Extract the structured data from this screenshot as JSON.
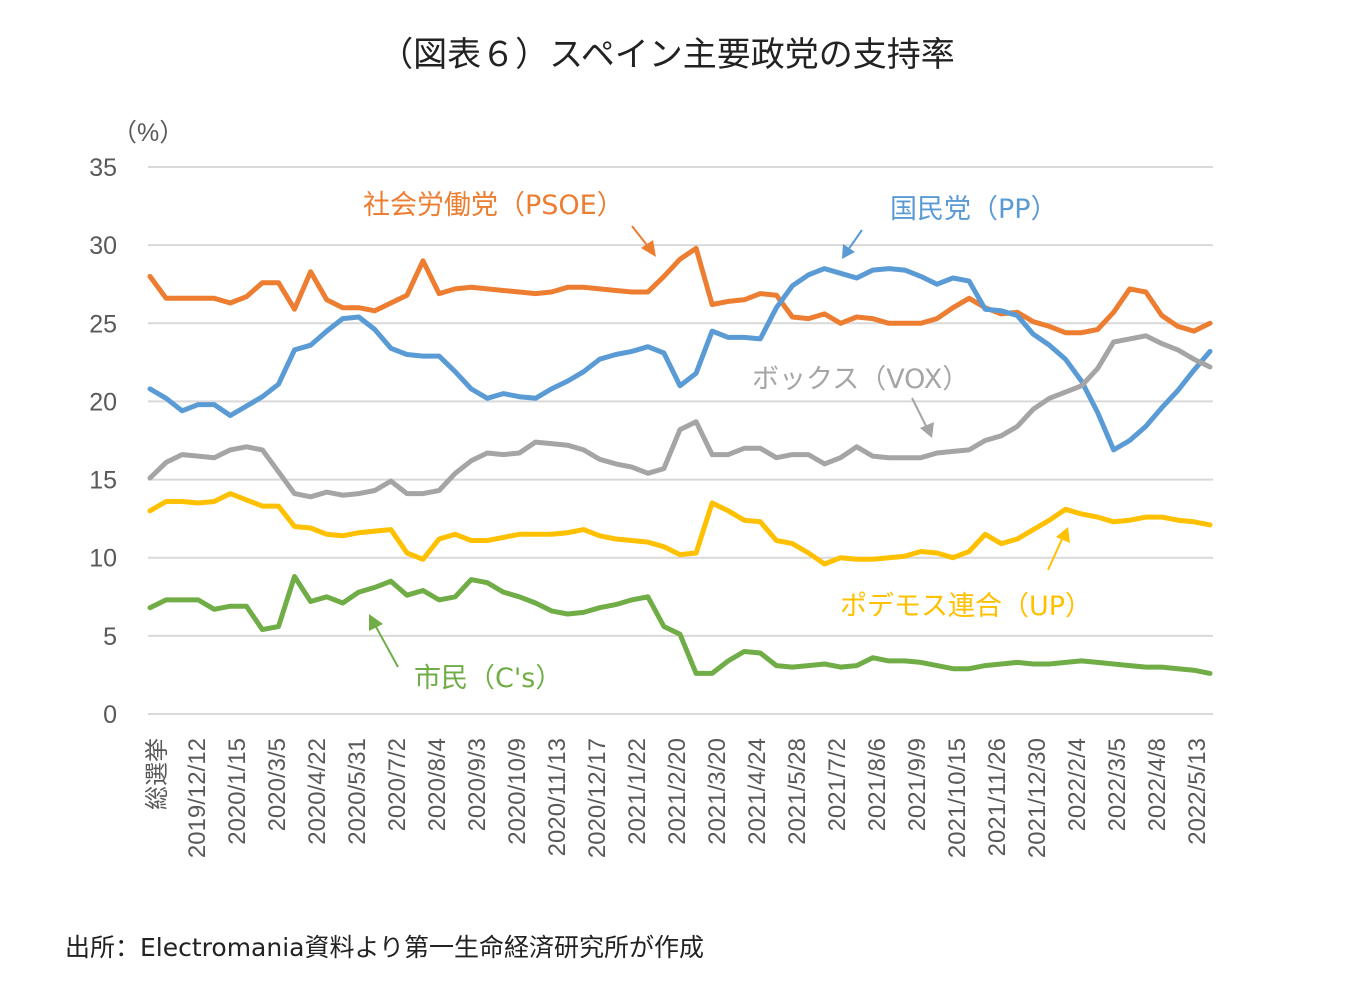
{
  "chart_data": {
    "type": "line",
    "title": "（図表６）スペイン主要政党の支持率",
    "ylabel": "（%）",
    "ylim": [
      0,
      35
    ],
    "yticks": [
      0,
      5,
      10,
      15,
      20,
      25,
      30,
      35
    ],
    "grid": true,
    "x_tick_labels": [
      "総選挙",
      "2019/12/12",
      "2020/1/15",
      "2020/3/5",
      "2020/4/22",
      "2020/5/31",
      "2020/7/2",
      "2020/8/4",
      "2020/9/3",
      "2020/10/9",
      "2020/11/13",
      "2020/12/17",
      "2021/1/22",
      "2021/2/20",
      "2021/3/20",
      "2021/4/24",
      "2021/5/28",
      "2021/7/2",
      "2021/8/6",
      "2021/9/9",
      "2021/10/15",
      "2021/11/26",
      "2021/12/30",
      "2022/2/4",
      "2022/3/5",
      "2022/4/8",
      "2022/5/13"
    ],
    "series": [
      {
        "name": "社会労働党（PSOE）",
        "color": "#ED7D31",
        "values": [
          28.0,
          26.6,
          26.6,
          26.6,
          26.6,
          26.3,
          26.7,
          27.6,
          27.6,
          25.9,
          28.3,
          26.5,
          26.0,
          26.0,
          25.8,
          26.3,
          26.8,
          29.0,
          26.9,
          27.2,
          27.3,
          27.2,
          27.1,
          27.0,
          26.9,
          27.0,
          27.3,
          27.3,
          27.2,
          27.1,
          27.0,
          27.0,
          28.0,
          29.1,
          29.8,
          26.2,
          26.4,
          26.5,
          26.9,
          26.8,
          25.4,
          25.3,
          25.6,
          25.0,
          25.4,
          25.3,
          25.0,
          25.0,
          25.0,
          25.3,
          26.0,
          26.6,
          26.0,
          25.6,
          25.7,
          25.1,
          24.8,
          24.4,
          24.4,
          24.6,
          25.7,
          27.2,
          27.0,
          25.5,
          24.8,
          24.5,
          25.0
        ]
      },
      {
        "name": "国民党（PP）",
        "color": "#5B9BD5",
        "values": [
          20.8,
          20.2,
          19.4,
          19.8,
          19.8,
          19.1,
          19.7,
          20.3,
          21.1,
          23.3,
          23.6,
          24.5,
          25.3,
          25.4,
          24.6,
          23.4,
          23.0,
          22.9,
          22.9,
          21.9,
          20.8,
          20.2,
          20.5,
          20.3,
          20.2,
          20.8,
          21.3,
          21.9,
          22.7,
          23.0,
          23.2,
          23.5,
          23.1,
          21.0,
          21.8,
          24.5,
          24.1,
          24.1,
          24.0,
          26.0,
          27.4,
          28.1,
          28.5,
          28.2,
          27.9,
          28.4,
          28.5,
          28.4,
          28.0,
          27.5,
          27.9,
          27.7,
          25.9,
          25.8,
          25.5,
          24.3,
          23.6,
          22.7,
          21.3,
          19.3,
          16.9,
          17.5,
          18.4,
          19.6,
          20.7,
          22.0,
          23.2
        ]
      },
      {
        "name": "ボックス（VOX）",
        "color": "#A5A5A5",
        "values": [
          15.1,
          16.1,
          16.6,
          16.5,
          16.4,
          16.9,
          17.1,
          16.9,
          15.5,
          14.1,
          13.9,
          14.2,
          14.0,
          14.1,
          14.3,
          14.9,
          14.1,
          14.1,
          14.3,
          15.4,
          16.2,
          16.7,
          16.6,
          16.7,
          17.4,
          17.3,
          17.2,
          16.9,
          16.3,
          16.0,
          15.8,
          15.4,
          15.7,
          18.2,
          18.7,
          16.6,
          16.6,
          17.0,
          17.0,
          16.4,
          16.6,
          16.6,
          16.0,
          16.4,
          17.1,
          16.5,
          16.4,
          16.4,
          16.4,
          16.7,
          16.8,
          16.9,
          17.5,
          17.8,
          18.4,
          19.5,
          20.2,
          20.6,
          21.0,
          22.1,
          23.8,
          24.0,
          24.2,
          23.7,
          23.3,
          22.7,
          22.2
        ]
      },
      {
        "name": "ポデモス連合（UP）",
        "color": "#FFC000",
        "values": [
          13.0,
          13.6,
          13.6,
          13.5,
          13.6,
          14.1,
          13.7,
          13.3,
          13.3,
          12.0,
          11.9,
          11.5,
          11.4,
          11.6,
          11.7,
          11.8,
          10.3,
          9.9,
          11.2,
          11.5,
          11.1,
          11.1,
          11.3,
          11.5,
          11.5,
          11.5,
          11.6,
          11.8,
          11.4,
          11.2,
          11.1,
          11.0,
          10.7,
          10.2,
          10.3,
          13.5,
          13.0,
          12.4,
          12.3,
          11.1,
          10.9,
          10.3,
          9.6,
          10.0,
          9.9,
          9.9,
          10.0,
          10.1,
          10.4,
          10.3,
          10.0,
          10.4,
          11.5,
          10.9,
          11.2,
          11.8,
          12.4,
          13.1,
          12.8,
          12.6,
          12.3,
          12.4,
          12.6,
          12.6,
          12.4,
          12.3,
          12.1
        ]
      },
      {
        "name": "市民（C's）",
        "color": "#70AD47",
        "values": [
          6.8,
          7.3,
          7.3,
          7.3,
          6.7,
          6.9,
          6.9,
          5.4,
          5.6,
          8.8,
          7.2,
          7.5,
          7.1,
          7.8,
          8.1,
          8.5,
          7.6,
          7.9,
          7.3,
          7.5,
          8.6,
          8.4,
          7.8,
          7.5,
          7.1,
          6.6,
          6.4,
          6.5,
          6.8,
          7.0,
          7.3,
          7.5,
          5.6,
          5.1,
          2.6,
          2.6,
          3.4,
          4.0,
          3.9,
          3.1,
          3.0,
          3.1,
          3.2,
          3.0,
          3.1,
          3.6,
          3.4,
          3.4,
          3.3,
          3.1,
          2.9,
          2.9,
          3.1,
          3.2,
          3.3,
          3.2,
          3.2,
          3.3,
          3.4,
          3.3,
          3.2,
          3.1,
          3.0,
          3.0,
          2.9,
          2.8,
          2.6
        ]
      }
    ]
  },
  "source": "出所：Electromania資料より第一生命経済研究所が作成"
}
